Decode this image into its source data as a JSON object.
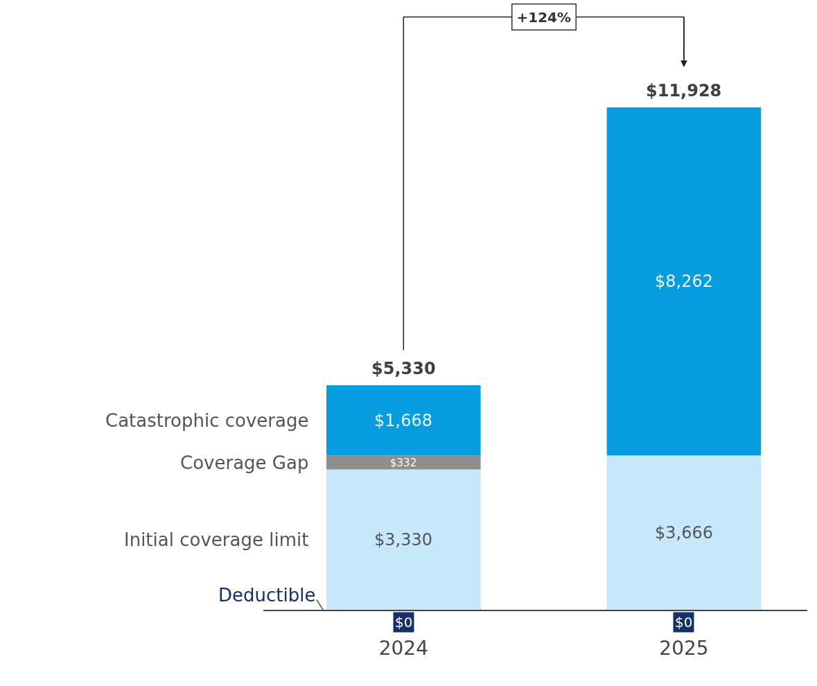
{
  "chart_data": {
    "type": "bar",
    "stacked": true,
    "legend": false,
    "categories": [
      "2024",
      "2025"
    ],
    "series": [
      {
        "name": "Deductible",
        "color": "#13306b",
        "values": [
          0,
          0
        ],
        "value_labels": [
          "$0",
          "$0"
        ]
      },
      {
        "name": "Initial coverage limit",
        "color": "#c6e8fa",
        "values": [
          3330,
          3666
        ],
        "value_labels": [
          "$3,330",
          "$3,666"
        ]
      },
      {
        "name": "Coverage Gap",
        "color": "#8e8e8e",
        "values": [
          332,
          null
        ],
        "value_labels": [
          "$332",
          null
        ]
      },
      {
        "name": "Catastrophic coverage",
        "color": "#069ddf",
        "values": [
          1668,
          8262
        ],
        "value_labels": [
          "$1,668",
          "$8,262"
        ]
      }
    ],
    "totals": [
      "$5,330",
      "$11,928"
    ],
    "annotations": [
      "+124%"
    ]
  }
}
